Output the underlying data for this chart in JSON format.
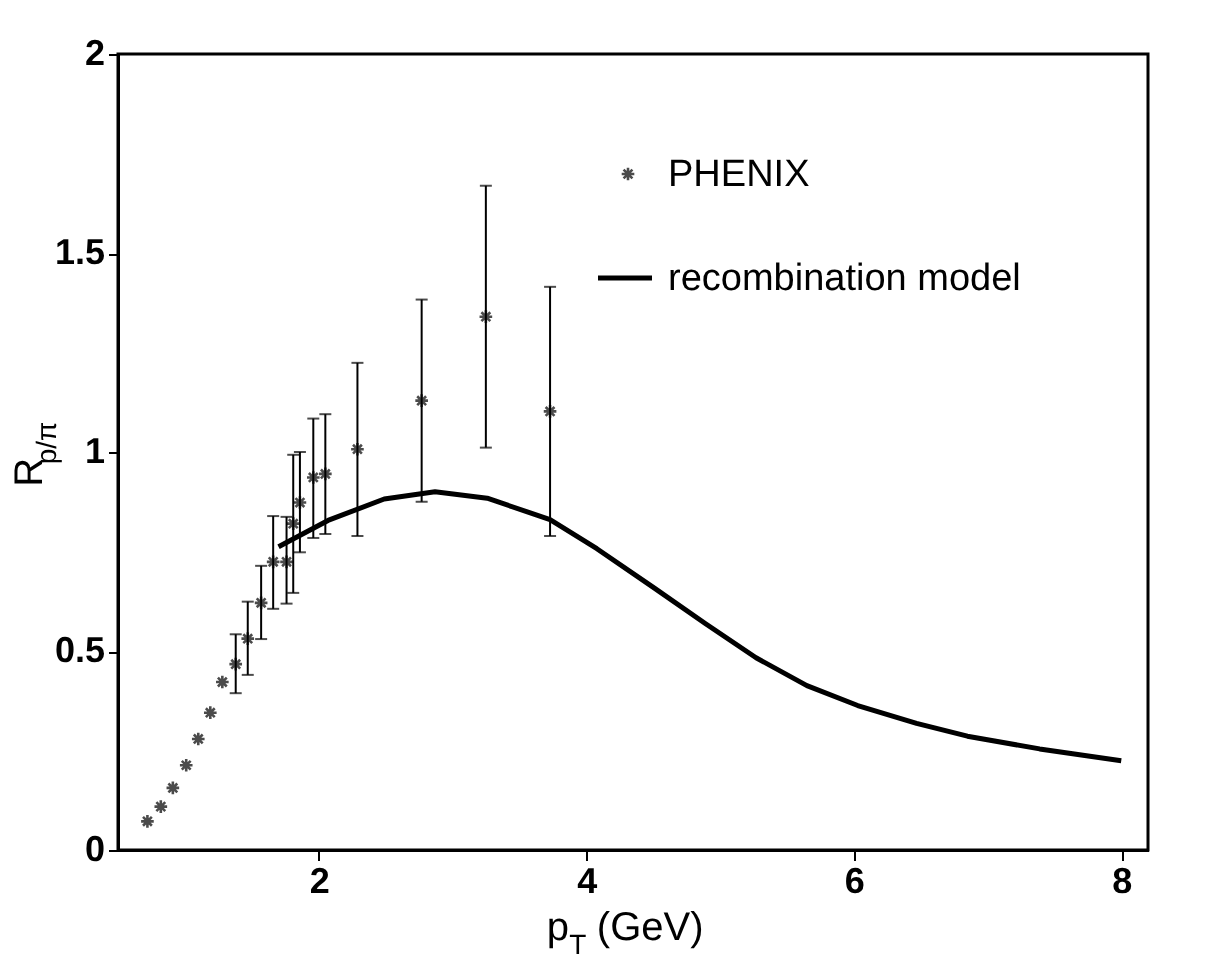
{
  "chart_data": {
    "type": "scatter",
    "xlabel": "p$_{T}$ (GeV)",
    "ylabel": "R$_{p/π}$",
    "xlim": [
      0.5,
      8.2
    ],
    "xticks": [
      2,
      4,
      6,
      8
    ],
    "ylim": [
      0,
      2
    ],
    "yticks": [
      0,
      0.5,
      1,
      1.5,
      2
    ],
    "grid": false,
    "legend": "top right",
    "series": [
      {
        "name": "PHENIX",
        "marker": "cross",
        "color": "#000000",
        "x": [
          0.72,
          0.82,
          0.91,
          1.01,
          1.1,
          1.19,
          1.28,
          1.38,
          1.47,
          1.57,
          1.66,
          1.76,
          1.81,
          1.86,
          1.96,
          2.05,
          2.29,
          2.77,
          3.25,
          3.73
        ],
        "values": [
          0.072,
          0.109,
          0.156,
          0.213,
          0.279,
          0.345,
          0.422,
          0.467,
          0.531,
          0.621,
          0.724,
          0.724,
          0.82,
          0.873,
          0.936,
          0.945,
          1.007,
          1.129,
          1.34,
          1.102
        ],
        "errors": [
          null,
          null,
          null,
          null,
          null,
          null,
          null,
          [
            0.394,
            0.542
          ],
          [
            0.44,
            0.624
          ],
          [
            0.53,
            0.714
          ],
          [
            0.606,
            0.839
          ],
          [
            0.619,
            0.837
          ],
          [
            0.646,
            0.993
          ],
          [
            0.748,
            1.0
          ],
          [
            0.784,
            1.084
          ],
          [
            0.794,
            1.095
          ],
          [
            0.789,
            1.224
          ],
          [
            0.875,
            1.383
          ],
          [
            1.011,
            1.669
          ],
          [
            0.789,
            1.415
          ]
        ]
      },
      {
        "name": "recombination model",
        "type": "line",
        "line_style": "solid",
        "color": "#000000",
        "x": [
          1.7,
          2.07,
          2.49,
          2.87,
          3.26,
          3.73,
          4.08,
          4.51,
          4.89,
          5.27,
          5.65,
          6.03,
          6.47,
          6.85,
          7.39,
          8.0
        ],
        "values": [
          0.762,
          0.828,
          0.882,
          0.9,
          0.884,
          0.83,
          0.757,
          0.658,
          0.569,
          0.483,
          0.413,
          0.363,
          0.318,
          0.286,
          0.254,
          0.224
        ]
      }
    ]
  }
}
